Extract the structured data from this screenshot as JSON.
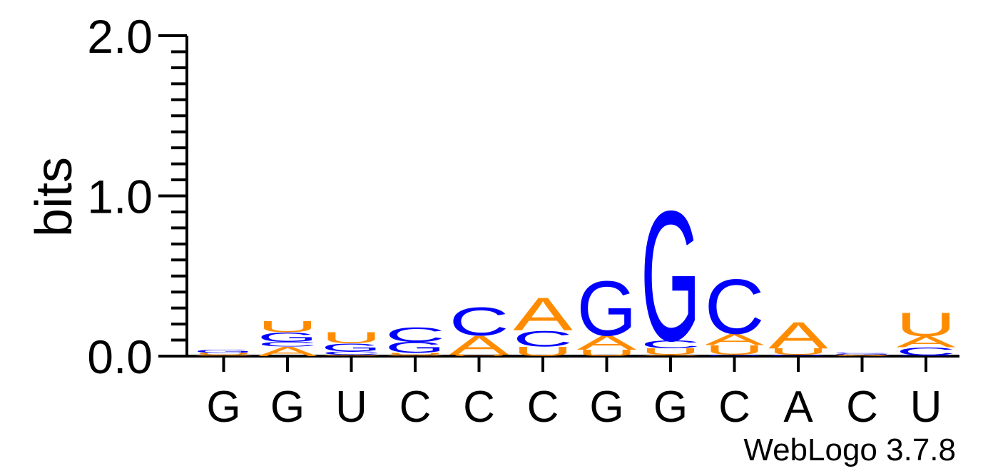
{
  "chart_data": {
    "type": "sequence-logo",
    "ylabel": "bits",
    "ylim": [
      0,
      2.0
    ],
    "y_ticks": [
      "0.0",
      "1.0",
      "2.0"
    ],
    "x_labels": [
      "G",
      "G",
      "U",
      "C",
      "C",
      "C",
      "G",
      "G",
      "C",
      "A",
      "C",
      "U"
    ],
    "colors": {
      "A": "#ff8c00",
      "U": "#ff8c00",
      "G": "#0000ff",
      "C": "#0000ff"
    },
    "columns": [
      {
        "label": "G",
        "stack": [
          {
            "letter": "A",
            "bits": 0.01
          },
          {
            "letter": "U",
            "bits": 0.01
          },
          {
            "letter": "G",
            "bits": 0.02
          }
        ]
      },
      {
        "label": "G",
        "stack": [
          {
            "letter": "A",
            "bits": 0.06
          },
          {
            "letter": "C",
            "bits": 0.03
          },
          {
            "letter": "G",
            "bits": 0.06
          },
          {
            "letter": "U",
            "bits": 0.07
          }
        ]
      },
      {
        "label": "U",
        "stack": [
          {
            "letter": "A",
            "bits": 0.01
          },
          {
            "letter": "C",
            "bits": 0.02
          },
          {
            "letter": "G",
            "bits": 0.05
          },
          {
            "letter": "U",
            "bits": 0.07
          }
        ]
      },
      {
        "label": "C",
        "stack": [
          {
            "letter": "A",
            "bits": 0.01
          },
          {
            "letter": "U",
            "bits": 0.01
          },
          {
            "letter": "G",
            "bits": 0.07
          },
          {
            "letter": "C",
            "bits": 0.09
          }
        ]
      },
      {
        "label": "C",
        "stack": [
          {
            "letter": "U",
            "bits": 0.01
          },
          {
            "letter": "A",
            "bits": 0.12
          },
          {
            "letter": "C",
            "bits": 0.18
          }
        ]
      },
      {
        "label": "C",
        "stack": [
          {
            "letter": "U",
            "bits": 0.06
          },
          {
            "letter": "C",
            "bits": 0.1
          },
          {
            "letter": "A",
            "bits": 0.21
          }
        ]
      },
      {
        "label": "G",
        "stack": [
          {
            "letter": "U",
            "bits": 0.04
          },
          {
            "letter": "A",
            "bits": 0.09
          },
          {
            "letter": "G",
            "bits": 0.35
          }
        ]
      },
      {
        "label": "G",
        "stack": [
          {
            "letter": "A",
            "bits": 0.01
          },
          {
            "letter": "U",
            "bits": 0.04
          },
          {
            "letter": "C",
            "bits": 0.05
          },
          {
            "letter": "G",
            "bits": 0.83
          }
        ]
      },
      {
        "label": "C",
        "stack": [
          {
            "letter": "G",
            "bits": 0.01
          },
          {
            "letter": "U",
            "bits": 0.06
          },
          {
            "letter": "A",
            "bits": 0.07
          },
          {
            "letter": "C",
            "bits": 0.35
          }
        ]
      },
      {
        "label": "A",
        "stack": [
          {
            "letter": "G",
            "bits": 0.01
          },
          {
            "letter": "U",
            "bits": 0.04
          },
          {
            "letter": "A",
            "bits": 0.17
          }
        ]
      },
      {
        "label": "C",
        "stack": [
          {
            "letter": "A",
            "bits": 0.005
          },
          {
            "letter": "U",
            "bits": 0.005
          },
          {
            "letter": "G",
            "bits": 0.005
          },
          {
            "letter": "C",
            "bits": 0.005
          }
        ]
      },
      {
        "label": "U",
        "stack": [
          {
            "letter": "G",
            "bits": 0.005
          },
          {
            "letter": "C",
            "bits": 0.05
          },
          {
            "letter": "A",
            "bits": 0.07
          },
          {
            "letter": "U",
            "bits": 0.15
          }
        ]
      }
    ]
  },
  "credit": "WebLogo 3.7.8"
}
